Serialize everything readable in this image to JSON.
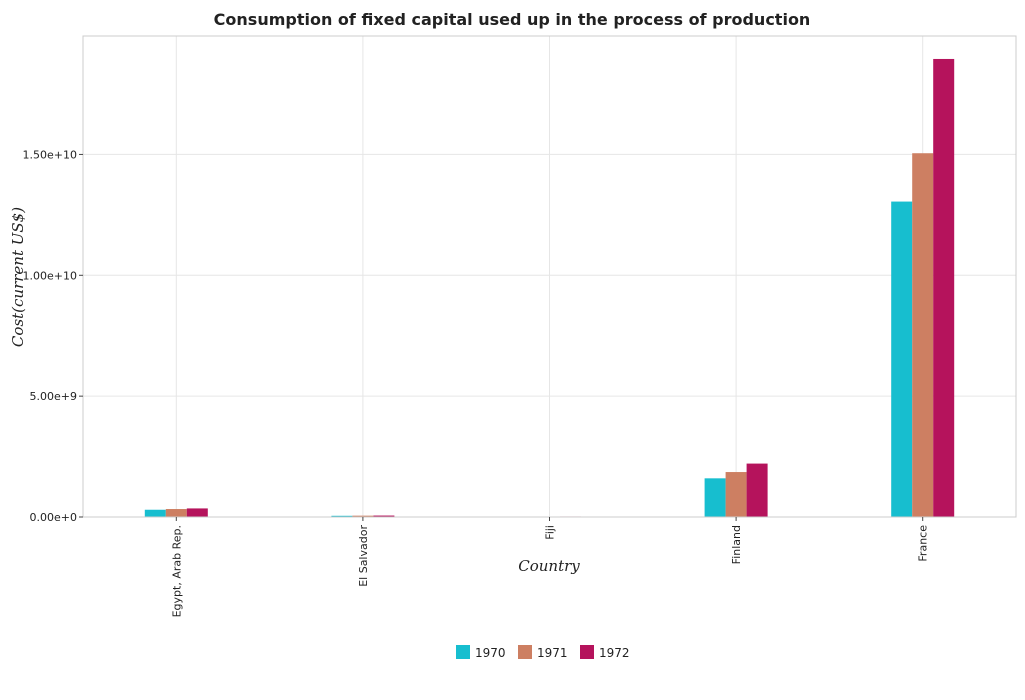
{
  "chart_data": {
    "type": "bar",
    "title": "Consumption of fixed capital used up in the process of production",
    "xlabel": "Country",
    "ylabel": "Cost(current US$)",
    "categories": [
      "Egypt, Arab Rep.",
      "El Salvador",
      "Fiji",
      "Finland",
      "France"
    ],
    "series": [
      {
        "name": "1970",
        "color": "#17becf",
        "values": [
          300000000,
          50000000,
          10000000,
          1600000000,
          13050000000
        ]
      },
      {
        "name": "1971",
        "color": "#cd7f62",
        "values": [
          330000000,
          55000000,
          15000000,
          1860000000,
          15050000000
        ]
      },
      {
        "name": "1972",
        "color": "#b5135c",
        "values": [
          355000000,
          60000000,
          22000000,
          2210000000,
          18950000000
        ]
      }
    ],
    "yticks": [
      {
        "value": 0,
        "label": "0.00e+0"
      },
      {
        "value": 5000000000,
        "label": "5.00e+9"
      },
      {
        "value": 10000000000,
        "label": "1.00e+10"
      },
      {
        "value": 15000000000,
        "label": "1.50e+10"
      }
    ],
    "ylim": [
      0,
      19900000000
    ],
    "grid": true,
    "legend": "bottom-center"
  }
}
